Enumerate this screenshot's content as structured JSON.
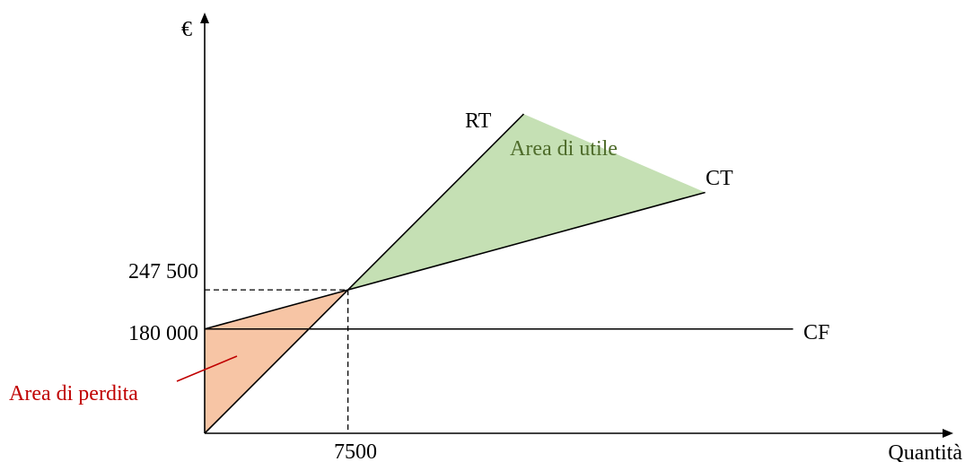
{
  "chart_data": {
    "type": "line",
    "title": "",
    "ylabel": "€",
    "xlabel": "Quantità",
    "break_even": {
      "x": 7500,
      "y": 247500
    },
    "x_ticks": [
      {
        "value": 7500,
        "label": "7500"
      }
    ],
    "y_ticks": [
      {
        "value": 180000,
        "label": "180 000"
      },
      {
        "value": 247500,
        "label": "247 500"
      }
    ],
    "series": [
      {
        "name": "RT",
        "points": [
          [
            0,
            0
          ],
          [
            7500,
            247500
          ],
          [
            16700,
            551100
          ]
        ]
      },
      {
        "name": "CT",
        "points": [
          [
            0,
            180000
          ],
          [
            7500,
            247500
          ],
          [
            26200,
            415800
          ]
        ]
      },
      {
        "name": "CF",
        "points": [
          [
            0,
            180000
          ],
          [
            30800,
            180000
          ]
        ]
      }
    ],
    "areas": [
      {
        "label": "Area di perdita",
        "color": "#f7c5a5"
      },
      {
        "label": "Area di utile",
        "color": "#c5e0b4"
      }
    ],
    "xlim": [
      0,
      39000
    ],
    "ylim": [
      0,
      720000
    ],
    "grid": false,
    "colors": {
      "axis": "#000000",
      "loss_text": "#c00000",
      "profit_text": "#4e6b2a"
    }
  }
}
